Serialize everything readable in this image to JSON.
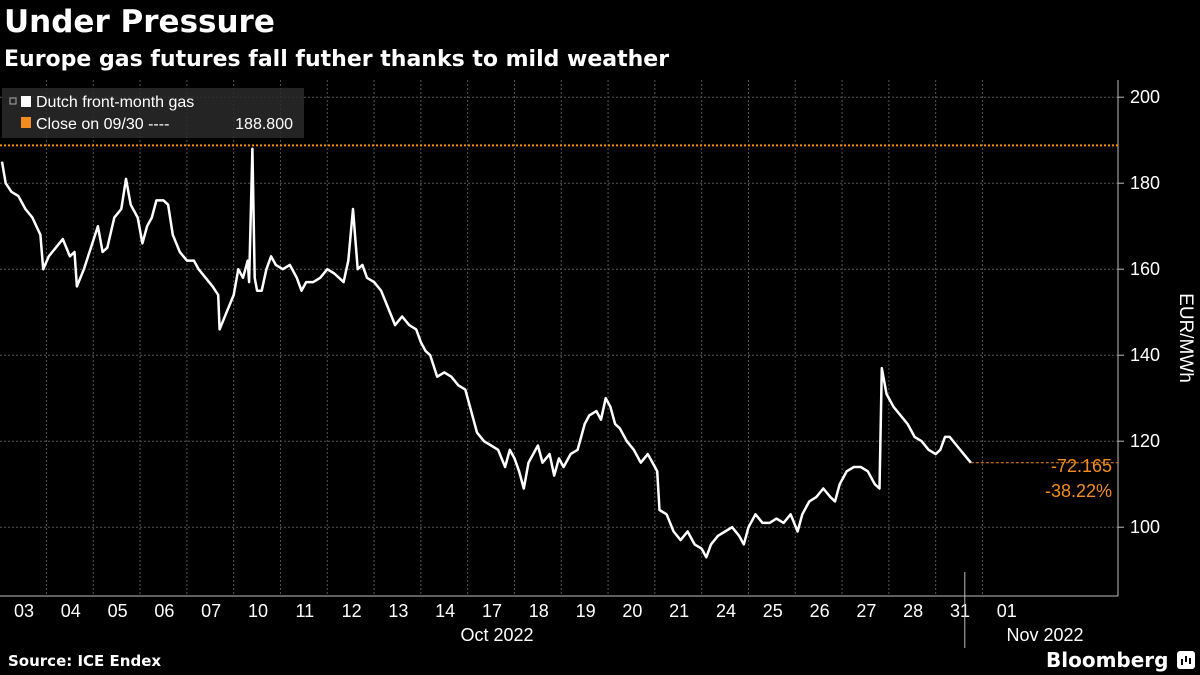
{
  "title": "Under Pressure",
  "subtitle": "Europe gas futures fall futher thanks to mild weather",
  "source": "Source: ICE Endex",
  "brand": "Bloomberg",
  "colors": {
    "background": "#000000",
    "series": "#ffffff",
    "reference": "#f28c1e",
    "grid": "#555555"
  },
  "chart_data": {
    "type": "line",
    "ylabel": "EUR/MWh",
    "ylim": [
      84,
      204
    ],
    "yticks": [
      100,
      120,
      140,
      160,
      180,
      200
    ],
    "grid": true,
    "legend_position": "top-left",
    "legend": {
      "series_label": "Dutch front-month gas",
      "reference_label": "Close on 09/30 ----",
      "reference_value": "188.800"
    },
    "reference_line": 188.8,
    "change_labels": [
      "-72.165",
      "-38.22%"
    ],
    "x_ticks": [
      "03",
      "04",
      "05",
      "06",
      "07",
      "10",
      "11",
      "12",
      "13",
      "14",
      "17",
      "18",
      "19",
      "20",
      "21",
      "24",
      "25",
      "26",
      "27",
      "28",
      "31",
      "01"
    ],
    "x_groups": [
      "Oct 2022",
      "Nov 2022"
    ],
    "series": [
      {
        "name": "Dutch front-month gas",
        "points": [
          [
            0.0,
            185
          ],
          [
            0.08,
            180
          ],
          [
            0.2,
            178
          ],
          [
            0.35,
            177
          ],
          [
            0.5,
            174
          ],
          [
            0.65,
            172
          ],
          [
            0.82,
            168
          ],
          [
            0.88,
            160
          ],
          [
            1.0,
            163
          ],
          [
            1.15,
            165
          ],
          [
            1.3,
            167
          ],
          [
            1.45,
            163
          ],
          [
            1.55,
            164
          ],
          [
            1.6,
            156
          ],
          [
            1.75,
            160
          ],
          [
            1.9,
            165
          ],
          [
            2.05,
            170
          ],
          [
            2.15,
            164
          ],
          [
            2.25,
            165
          ],
          [
            2.4,
            172
          ],
          [
            2.55,
            174
          ],
          [
            2.65,
            181
          ],
          [
            2.75,
            175
          ],
          [
            2.9,
            172
          ],
          [
            3.0,
            166
          ],
          [
            3.1,
            170
          ],
          [
            3.2,
            172
          ],
          [
            3.3,
            176
          ],
          [
            3.45,
            176
          ],
          [
            3.55,
            175
          ],
          [
            3.65,
            168
          ],
          [
            3.8,
            164
          ],
          [
            3.95,
            162
          ],
          [
            4.1,
            162
          ],
          [
            4.2,
            160
          ],
          [
            4.35,
            158
          ],
          [
            4.5,
            156
          ],
          [
            4.62,
            154
          ],
          [
            4.65,
            146
          ],
          [
            4.8,
            150
          ],
          [
            4.95,
            154
          ],
          [
            5.05,
            160
          ],
          [
            5.15,
            158
          ],
          [
            5.25,
            162
          ],
          [
            5.28,
            157
          ],
          [
            5.35,
            188
          ],
          [
            5.4,
            158
          ],
          [
            5.45,
            155
          ],
          [
            5.55,
            155
          ],
          [
            5.65,
            160
          ],
          [
            5.75,
            163
          ],
          [
            5.85,
            161
          ],
          [
            6.0,
            160
          ],
          [
            6.15,
            161
          ],
          [
            6.3,
            158
          ],
          [
            6.4,
            155
          ],
          [
            6.5,
            157
          ],
          [
            6.65,
            157
          ],
          [
            6.8,
            158
          ],
          [
            6.95,
            160
          ],
          [
            7.1,
            159
          ],
          [
            7.2,
            158
          ],
          [
            7.3,
            157
          ],
          [
            7.4,
            162
          ],
          [
            7.5,
            174
          ],
          [
            7.6,
            160
          ],
          [
            7.7,
            161
          ],
          [
            7.8,
            158
          ],
          [
            7.95,
            157
          ],
          [
            8.1,
            155
          ],
          [
            8.25,
            151
          ],
          [
            8.4,
            147
          ],
          [
            8.55,
            149
          ],
          [
            8.7,
            147
          ],
          [
            8.85,
            146
          ],
          [
            8.95,
            143
          ],
          [
            9.05,
            141
          ],
          [
            9.15,
            140
          ],
          [
            9.3,
            135
          ],
          [
            9.45,
            136
          ],
          [
            9.6,
            135
          ],
          [
            9.75,
            133
          ],
          [
            9.9,
            132
          ],
          [
            10.0,
            128
          ],
          [
            10.15,
            122
          ],
          [
            10.3,
            120
          ],
          [
            10.45,
            119
          ],
          [
            10.6,
            118
          ],
          [
            10.75,
            114
          ],
          [
            10.85,
            118
          ],
          [
            10.95,
            116
          ],
          [
            11.05,
            113
          ],
          [
            11.15,
            109
          ],
          [
            11.25,
            115
          ],
          [
            11.35,
            117
          ],
          [
            11.45,
            119
          ],
          [
            11.55,
            115
          ],
          [
            11.7,
            117
          ],
          [
            11.8,
            112
          ],
          [
            11.9,
            116
          ],
          [
            12.0,
            114
          ],
          [
            12.15,
            117
          ],
          [
            12.3,
            118
          ],
          [
            12.45,
            124
          ],
          [
            12.55,
            126
          ],
          [
            12.7,
            127
          ],
          [
            12.8,
            125
          ],
          [
            12.9,
            130
          ],
          [
            13.0,
            128
          ],
          [
            13.1,
            124
          ],
          [
            13.2,
            123
          ],
          [
            13.35,
            120
          ],
          [
            13.5,
            118
          ],
          [
            13.65,
            115
          ],
          [
            13.8,
            117
          ],
          [
            13.95,
            114
          ],
          [
            14.0,
            113
          ],
          [
            14.05,
            104
          ],
          [
            14.2,
            103
          ],
          [
            14.35,
            99
          ],
          [
            14.5,
            97
          ],
          [
            14.65,
            99
          ],
          [
            14.8,
            96
          ],
          [
            14.95,
            95
          ],
          [
            15.05,
            93
          ],
          [
            15.15,
            96
          ],
          [
            15.3,
            98
          ],
          [
            15.45,
            99
          ],
          [
            15.6,
            100
          ],
          [
            15.75,
            98
          ],
          [
            15.85,
            96
          ],
          [
            15.95,
            100
          ],
          [
            16.1,
            103
          ],
          [
            16.25,
            101
          ],
          [
            16.4,
            101
          ],
          [
            16.55,
            102
          ],
          [
            16.7,
            101
          ],
          [
            16.85,
            103
          ],
          [
            17.0,
            99
          ],
          [
            17.1,
            103
          ],
          [
            17.25,
            106
          ],
          [
            17.4,
            107
          ],
          [
            17.55,
            109
          ],
          [
            17.7,
            107
          ],
          [
            17.8,
            106
          ],
          [
            17.9,
            110
          ],
          [
            18.05,
            113
          ],
          [
            18.2,
            114
          ],
          [
            18.35,
            114
          ],
          [
            18.5,
            113
          ],
          [
            18.65,
            110
          ],
          [
            18.75,
            109
          ],
          [
            18.8,
            137
          ],
          [
            18.9,
            131
          ],
          [
            19.05,
            128
          ],
          [
            19.2,
            126
          ],
          [
            19.35,
            124
          ],
          [
            19.5,
            121
          ],
          [
            19.65,
            120
          ],
          [
            19.8,
            118
          ],
          [
            19.95,
            117
          ],
          [
            20.05,
            118
          ],
          [
            20.15,
            121
          ],
          [
            20.25,
            121
          ],
          [
            20.4,
            119
          ],
          [
            20.55,
            117
          ],
          [
            20.7,
            115
          ]
        ]
      }
    ]
  }
}
